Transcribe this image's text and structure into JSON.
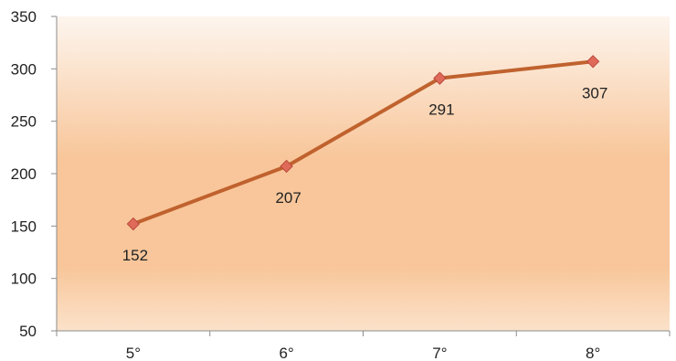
{
  "chart_data": {
    "type": "line",
    "categories": [
      "5°",
      "6°",
      "7°",
      "8°"
    ],
    "series": [
      {
        "values": [
          152,
          207,
          291,
          307
        ]
      }
    ],
    "data_labels": [
      "152",
      "207",
      "291",
      "307"
    ],
    "y_ticks": [
      50,
      100,
      150,
      200,
      250,
      300,
      350
    ],
    "y_tick_labels": [
      "50",
      "100",
      "150",
      "200",
      "250",
      "300",
      "350"
    ],
    "ylim": [
      50,
      350
    ],
    "grid": false,
    "legend": "none",
    "colors": {
      "line": "#c0622e",
      "marker_fill": "#e06a5a",
      "marker_stroke": "#b84a3c",
      "plot_bg_top": "#fdf5ee",
      "plot_bg_mid": "#f8c69a",
      "plot_bg_bottom": "#fbe2ca",
      "axis": "#8c8c8c"
    }
  }
}
